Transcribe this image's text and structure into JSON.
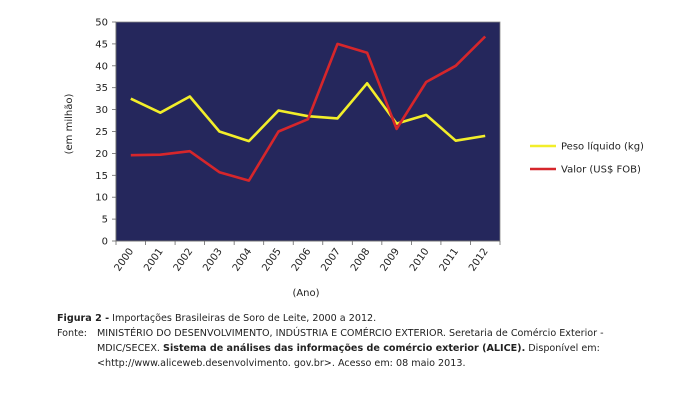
{
  "chart_data": {
    "type": "line",
    "categories": [
      "2000",
      "2001",
      "2002",
      "2003",
      "2004",
      "2005",
      "2006",
      "2007",
      "2008",
      "2009",
      "2010",
      "2011",
      "2012"
    ],
    "series": [
      {
        "name": "Peso líquido (kg)",
        "color": "#f2ee2a",
        "values": [
          32.5,
          29.3,
          33.0,
          25.0,
          22.8,
          29.8,
          28.5,
          28.0,
          36.0,
          26.8,
          28.8,
          22.9,
          24.0
        ]
      },
      {
        "name": "Valor (US$ FOB)",
        "color": "#d6262b",
        "values": [
          19.6,
          19.7,
          20.5,
          15.7,
          13.8,
          25.0,
          27.8,
          45.0,
          43.0,
          25.6,
          36.3,
          40.0,
          46.7
        ]
      }
    ],
    "ylabel": "(em milhão)",
    "xlabel": "(Ano)",
    "ylim": [
      0,
      50
    ],
    "yticks": [
      0,
      5,
      10,
      15,
      20,
      25,
      30,
      35,
      40,
      45,
      50
    ],
    "plot_background": "#25275c",
    "legend_position": "right"
  },
  "caption": {
    "label": "Figura 2 -",
    "text": "Importações Brasileiras de Soro de Leite, 2000 a 2012."
  },
  "source": {
    "label": "Fonte:",
    "line1": "MINISTÉRIO DO DESENVOLVIMENTO, INDÚSTRIA E COMÉRCIO EXTERIOR. Seretaria de Comércio Exterior -",
    "line2a": "MDIC/SECEX.",
    "line2b": "Sistema de análises das informações de comércio exterior (ALICE).",
    "line2c": "Disponível em:",
    "line3": "<http://www.aliceweb.desenvolvimento. gov.br>. Acesso em: 08 maio 2013."
  }
}
